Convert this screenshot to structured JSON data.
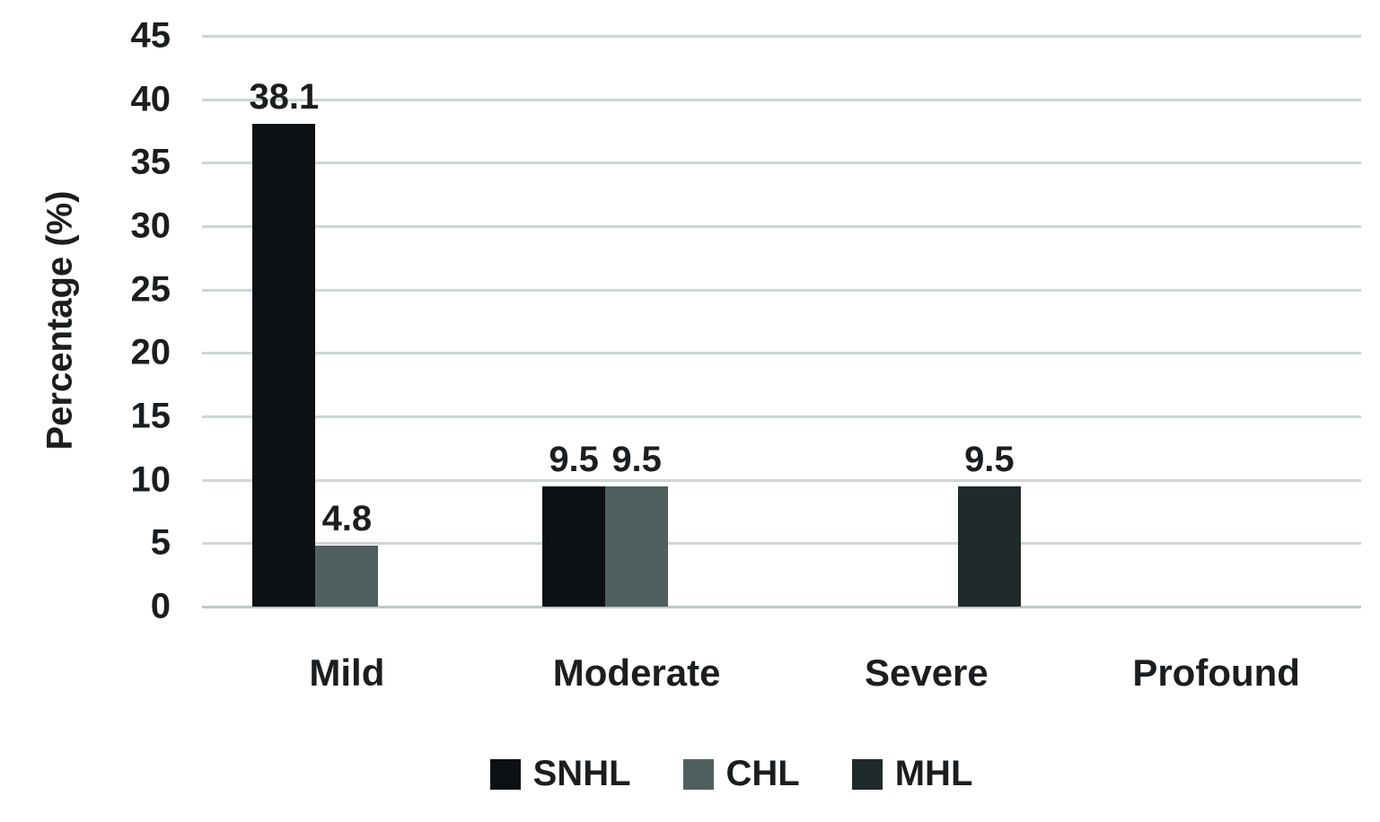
{
  "chart_data": {
    "type": "bar",
    "title": "",
    "xlabel": "",
    "ylabel": "Percentage (%)",
    "ylim": [
      0,
      45
    ],
    "ytick_step": 5,
    "yticks": [
      45,
      40,
      35,
      30,
      25,
      20,
      15,
      10,
      5,
      0
    ],
    "grid": true,
    "legend_position": "bottom",
    "categories": [
      "Mild",
      "Moderate",
      "Severe",
      "Profound"
    ],
    "series": [
      {
        "name": "SNHL",
        "color": "#0e1114",
        "values": [
          38.1,
          9.5,
          null,
          null
        ]
      },
      {
        "name": "CHL",
        "color": "#50605e",
        "values": [
          4.8,
          9.5,
          null,
          null
        ]
      },
      {
        "name": "MHL",
        "color": "#1e2a2b",
        "values": [
          null,
          null,
          9.5,
          null
        ]
      }
    ],
    "data_labels": true,
    "colors": {
      "gridline": "#cfd6d6",
      "baseline": "#bdc7c7",
      "text": "#1b1e20",
      "background": "#ffffff"
    }
  }
}
